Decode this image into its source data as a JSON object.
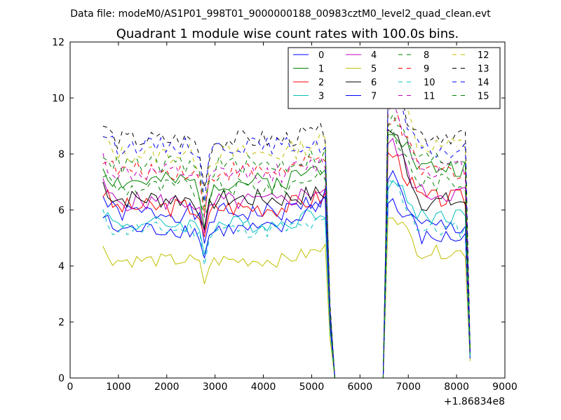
{
  "chart_data": {
    "type": "line",
    "suptitle": "Data file: modeM0/AS1P01_998T01_9000000188_00983cztM0_level2_quad_clean.evt",
    "title": "Quadrant 1 module wise count rates with 100.0s bins.",
    "xlim": [
      0,
      9000
    ],
    "ylim": [
      0,
      12
    ],
    "xticks": [
      0,
      1000,
      2000,
      3000,
      4000,
      5000,
      6000,
      7000,
      8000,
      9000
    ],
    "yticks": [
      0,
      2,
      4,
      6,
      8,
      10,
      12
    ],
    "x_offset_label": "+1.86834e8",
    "xlabel": "",
    "ylabel": "",
    "grid": false,
    "legend_position": "top-right",
    "segment_a": {
      "x_start": 680,
      "x_end": 5280,
      "step": 100
    },
    "gap": {
      "x_start": 5480,
      "x_end": 6480
    },
    "segment_b": {
      "x_start": 6580,
      "x_end": 8280,
      "step": 100
    },
    "series": [
      {
        "name": "0",
        "color": "#0000ff",
        "dash": "solid",
        "base": 5.9,
        "pre": 6.5,
        "spike": 6.2,
        "post": 5.4,
        "endv": 0.8,
        "amp": 0.35,
        "dip": 1.3,
        "seed": 1
      },
      {
        "name": "1",
        "color": "#008000",
        "dash": "solid",
        "base": 7.0,
        "pre": 7.6,
        "spike": 9.0,
        "post": 7.5,
        "endv": 0.9,
        "amp": 0.35,
        "dip": 1.5,
        "seed": 2
      },
      {
        "name": "2",
        "color": "#ff0000",
        "dash": "solid",
        "base": 6.1,
        "pre": 6.5,
        "spike": 8.0,
        "post": 6.4,
        "endv": 0.8,
        "amp": 0.35,
        "dip": 1.3,
        "seed": 3
      },
      {
        "name": "3",
        "color": "#00bfbf",
        "dash": "solid",
        "base": 5.5,
        "pre": 6.0,
        "spike": 7.0,
        "post": 5.8,
        "endv": 0.7,
        "amp": 0.3,
        "dip": 1.0,
        "seed": 4
      },
      {
        "name": "4",
        "color": "#bf00bf",
        "dash": "solid",
        "base": 6.3,
        "pre": 6.8,
        "spike": 8.3,
        "post": 6.6,
        "endv": 0.8,
        "amp": 0.35,
        "dip": 1.4,
        "seed": 5
      },
      {
        "name": "5",
        "color": "#bfbf00",
        "dash": "solid",
        "base": 4.2,
        "pre": 4.6,
        "spike": 5.9,
        "post": 4.5,
        "endv": 0.6,
        "amp": 0.25,
        "dip": 0.8,
        "seed": 6
      },
      {
        "name": "6",
        "color": "#000000",
        "dash": "solid",
        "base": 6.4,
        "pre": 6.6,
        "spike": 8.8,
        "post": 6.3,
        "endv": 0.8,
        "amp": 0.35,
        "dip": 1.4,
        "seed": 7
      },
      {
        "name": "7",
        "color": "#0000ff",
        "dash": "solid",
        "base": 5.3,
        "pre": 6.4,
        "spike": 7.3,
        "post": 5.0,
        "endv": 0.7,
        "amp": 0.3,
        "dip": 1.0,
        "seed": 8
      },
      {
        "name": "8",
        "color": "#008000",
        "dash": "dashed",
        "base": 6.8,
        "pre": 7.4,
        "spike": 8.6,
        "post": 7.0,
        "endv": 0.8,
        "amp": 0.35,
        "dip": 1.4,
        "seed": 9
      },
      {
        "name": "9",
        "color": "#ff0000",
        "dash": "dashed",
        "base": 7.4,
        "pre": 7.8,
        "spike": 9.3,
        "post": 7.4,
        "endv": 0.9,
        "amp": 0.35,
        "dip": 1.6,
        "seed": 10
      },
      {
        "name": "10",
        "color": "#00bfbf",
        "dash": "dashed",
        "base": 5.3,
        "pre": 5.5,
        "spike": 7.0,
        "post": 5.3,
        "endv": 0.7,
        "amp": 0.3,
        "dip": 1.0,
        "seed": 11
      },
      {
        "name": "11",
        "color": "#bf00bf",
        "dash": "dashed",
        "base": 7.3,
        "pre": 7.7,
        "spike": 9.7,
        "post": 7.5,
        "endv": 0.9,
        "amp": 0.35,
        "dip": 1.6,
        "seed": 12
      },
      {
        "name": "12",
        "color": "#bfbf00",
        "dash": "dashed",
        "base": 8.0,
        "pre": 8.5,
        "spike": 10.7,
        "post": 8.3,
        "endv": 1.0,
        "amp": 0.35,
        "dip": 1.8,
        "seed": 13
      },
      {
        "name": "13",
        "color": "#000000",
        "dash": "dashed",
        "base": 8.5,
        "pre": 8.8,
        "spike": 10.1,
        "post": 8.7,
        "endv": 1.0,
        "amp": 0.35,
        "dip": 1.8,
        "seed": 14
      },
      {
        "name": "14",
        "color": "#0000ff",
        "dash": "dashed",
        "base": 8.3,
        "pre": 8.3,
        "spike": 10.0,
        "post": 8.1,
        "endv": 0.9,
        "amp": 0.3,
        "dip": 1.8,
        "seed": 15
      },
      {
        "name": "15",
        "color": "#008000",
        "dash": "dashed",
        "base": 7.6,
        "pre": 8.0,
        "spike": 9.2,
        "post": 7.8,
        "endv": 0.9,
        "amp": 0.35,
        "dip": 1.6,
        "seed": 16
      }
    ]
  }
}
